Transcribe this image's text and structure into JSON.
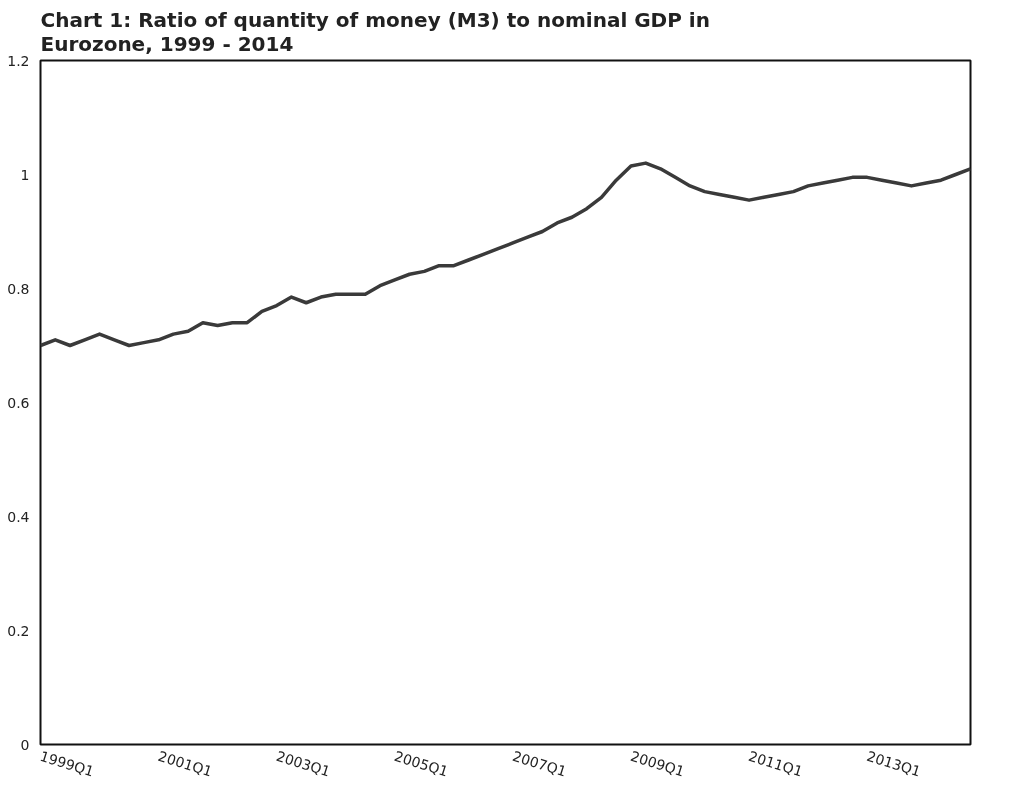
{
  "chart_data": {
    "type": "line",
    "title": "Chart 1: Ratio of quantity of money (M3) to nominal GDP in Eurozone, 1999 - 2014",
    "categories": [
      "1999Q1",
      null,
      null,
      null,
      null,
      null,
      null,
      null,
      "2001Q1",
      null,
      null,
      null,
      null,
      null,
      null,
      null,
      "2003Q1",
      null,
      null,
      null,
      null,
      null,
      null,
      null,
      "2005Q1",
      null,
      null,
      null,
      null,
      null,
      null,
      null,
      "2007Q1",
      null,
      null,
      null,
      null,
      null,
      null,
      null,
      "2009Q1",
      null,
      null,
      null,
      null,
      null,
      null,
      null,
      "2011Q1",
      null,
      null,
      null,
      null,
      null,
      null,
      null,
      "2013Q1",
      null,
      null,
      null,
      null,
      null,
      null,
      null
    ],
    "series": [
      {
        "color": "#3a3a3a",
        "values": [
          0.7,
          0.71,
          0.7,
          0.71,
          0.72,
          0.71,
          0.7,
          0.705,
          0.71,
          0.72,
          0.725,
          0.74,
          0.735,
          0.74,
          0.74,
          0.76,
          0.77,
          0.785,
          0.775,
          0.785,
          0.79,
          0.79,
          0.79,
          0.805,
          0.815,
          0.825,
          0.83,
          0.84,
          0.84,
          0.85,
          0.86,
          0.87,
          0.88,
          0.89,
          0.9,
          0.915,
          0.925,
          0.94,
          0.96,
          0.99,
          1.015,
          1.02,
          1.01,
          0.995,
          0.98,
          0.97,
          0.965,
          0.96,
          0.955,
          0.96,
          0.965,
          0.97,
          0.98,
          0.985,
          0.99,
          0.995,
          0.995,
          0.99,
          0.985,
          0.98,
          0.985,
          0.99,
          1.0,
          1.01
        ]
      }
    ],
    "ylim": [
      0,
      1.2
    ],
    "yticks": [
      0,
      0.2,
      0.4,
      0.6,
      0.8,
      1,
      1.2
    ],
    "grid": false,
    "marker": "none",
    "line_style": "solid"
  }
}
